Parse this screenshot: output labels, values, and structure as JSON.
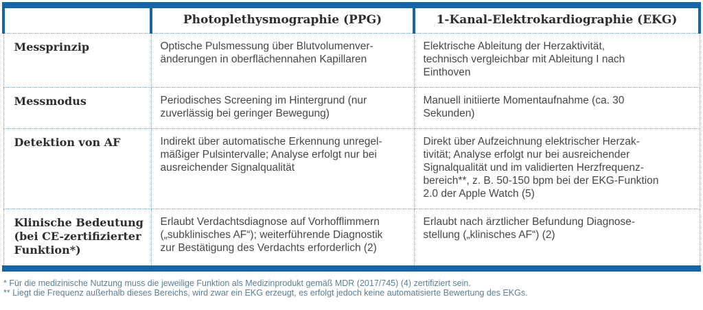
{
  "table": {
    "column_headers": [
      "",
      "Photoplethysmographie (PPG)",
      "1-Kanal-Elektrokardiographie (EKG)"
    ],
    "rows": [
      {
        "label": "Messprinzip",
        "ppg": "Optische Pulsmessung über Blutvolumenver-\nänderungen in oberflächennahen Kapillaren",
        "ekg": "Elektrische Ableitung der Herzaktivität,\ntechnisch vergleichbar mit Ableitung I nach\nEinthoven"
      },
      {
        "label": "Messmodus",
        "ppg": "Periodisches Screening im Hintergrund (nur\nzuverlässig bei geringer Bewegung)",
        "ekg": "Manuell initiierte Momentaufnahme (ca. 30\nSekunden)"
      },
      {
        "label": "Detektion von AF",
        "ppg": "Indirekt über automatische Erkennung unregel-\nmäßiger Pulsintervalle; Analyse erfolgt nur bei\nausreichender Signalqualität",
        "ekg": "Direkt über Aufzeichnung elektrischer Herzak-\ntivität; Analyse erfolgt nur bei ausreichender\nSignalqualität und im validierten Herzfrequenz-\nbereich**, z. B. 50-150 bpm bei der EKG-Funktion\n2.0 der Apple Watch (5)"
      },
      {
        "label": "Klinische Bedeutung\n(bei CE-zertifizierter\nFunktion*)",
        "ppg": "Erlaubt Verdachtsdiagnose auf Vorhofflimmern\n(„subklinisches AF“); weiterführende Diagnostik\nzur Bestätigung des Verdachts erforderlich (2)",
        "ekg": "Erlaubt nach ärztlicher Befundung Diagnose-\nstellung („klinisches AF“) (2)"
      }
    ]
  },
  "footnotes": [
    "* Für die medizinische Nutzung muss die jeweilige Funktion als Medizinprodukt gemäß MDR (2017/745) (4) zertifiziert sein.",
    "** Liegt die Frequenz außerhalb dieses Bereichs, wird zwar ein EKG erzeugt, es erfolgt jedoch keine automatisierte Bewertung des EKGs."
  ],
  "colors": {
    "accent_blue": "#1466ab",
    "dot_blue": "#74a3c6",
    "footnote_color": "#5d7e93"
  }
}
